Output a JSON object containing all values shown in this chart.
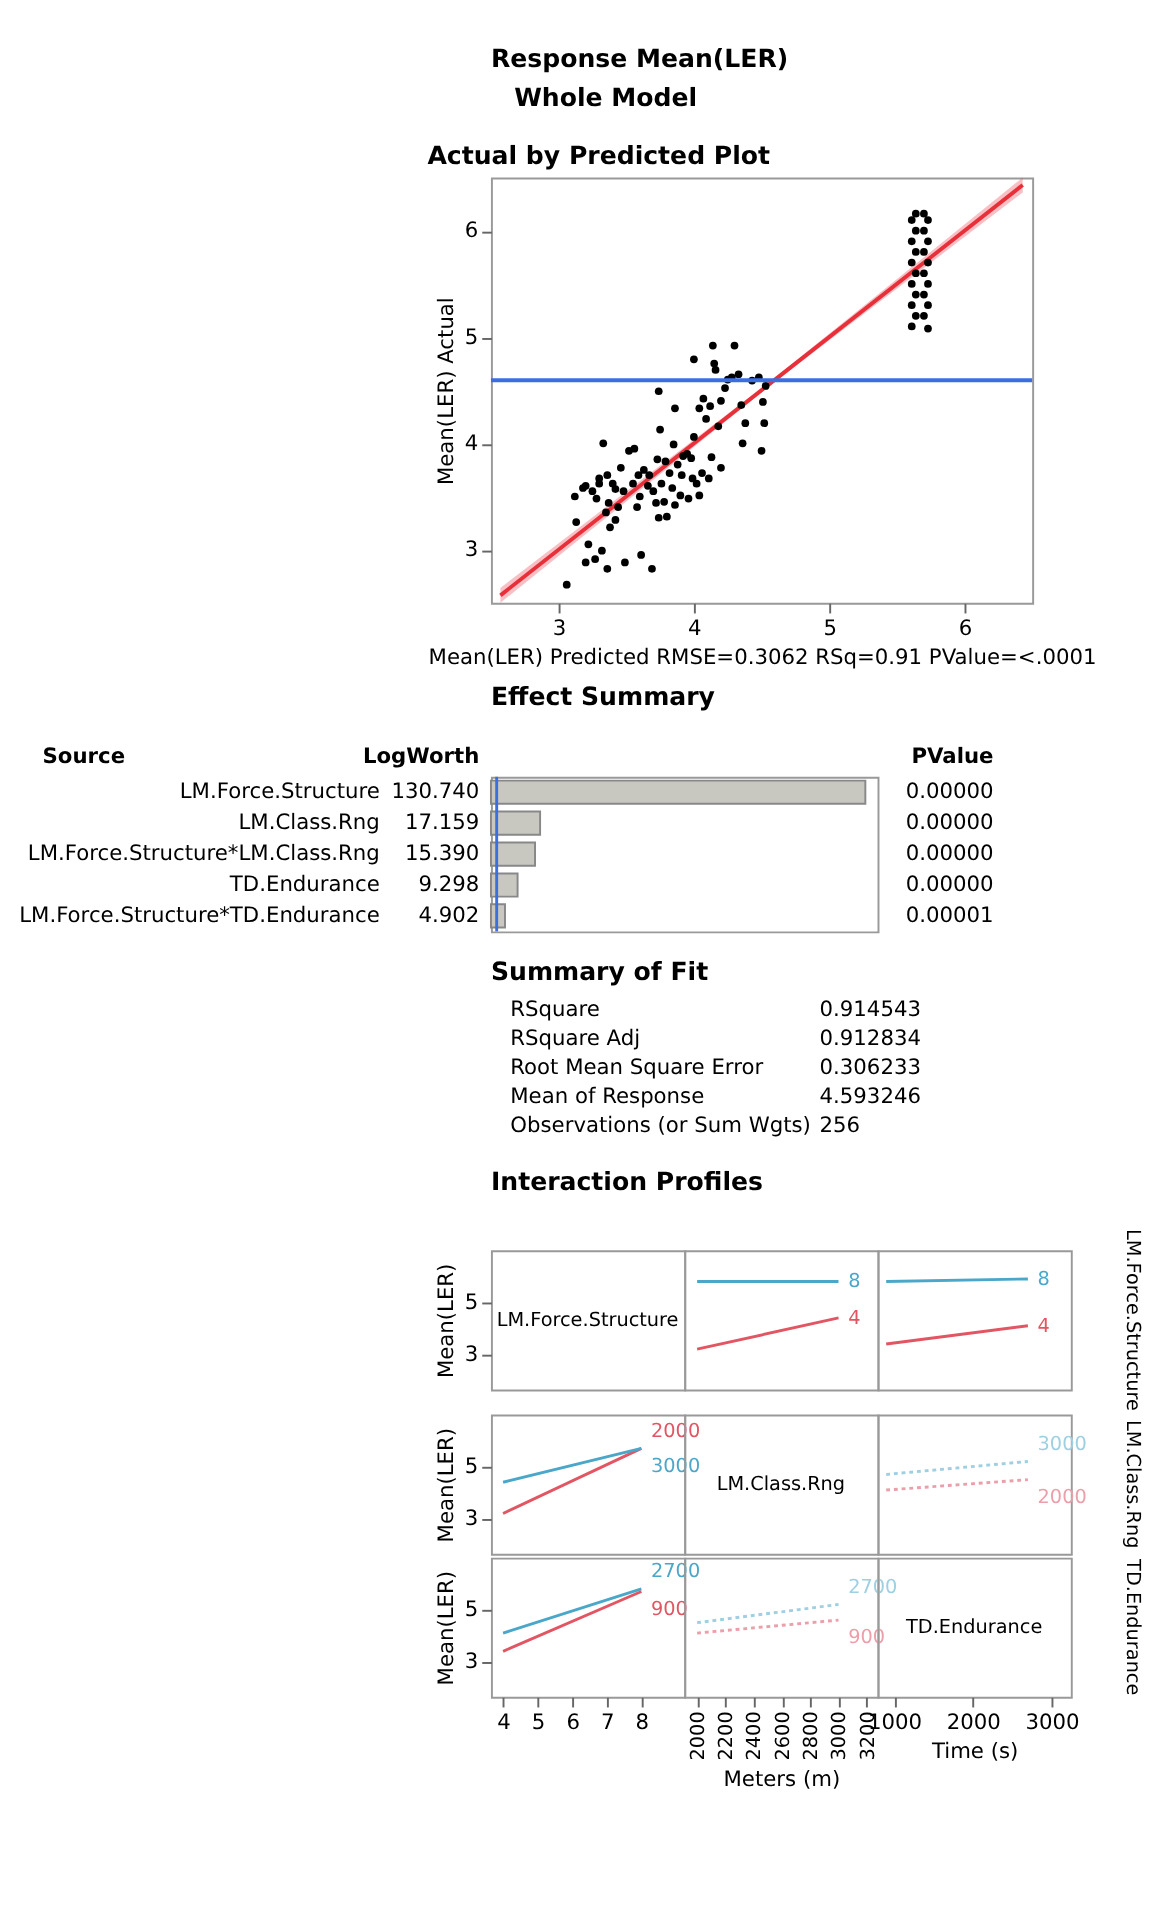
{
  "chart_data": [
    {
      "type": "other",
      "title": "Response Mean(LER)",
      "subtitle": "Whole Model"
    },
    {
      "type": "scatter",
      "title": "Actual by Predicted Plot",
      "xlabel": "Mean(LER) Predicted RMSE=0.3062 RSq=0.91 PValue=<.0001",
      "ylabel": "Mean(LER) Actual",
      "xlim": [
        2.5,
        6.5
      ],
      "ylim": [
        2.5,
        6.5
      ],
      "xticks": [
        3,
        4,
        5,
        6
      ],
      "yticks": [
        3,
        4,
        5,
        6
      ],
      "grid": false,
      "ref_lines": [
        {
          "axis": "y",
          "value": 4.593,
          "color": "#3b6fe0"
        }
      ],
      "series": [
        {
          "type": "line",
          "color": "#e8303a",
          "x": [
            2.57,
            4.59,
            6.43
          ],
          "values": [
            2.57,
            4.59,
            6.43
          ],
          "lower": [
            2.5,
            4.57,
            6.36
          ],
          "upper": [
            2.64,
            4.61,
            6.5
          ]
        },
        {
          "type": "scatter",
          "color": "#000000",
          "x": [
            3.06,
            3.13,
            3.12,
            3.2,
            3.22,
            3.2,
            3.27,
            3.3,
            3.33,
            3.36,
            3.37,
            3.38,
            3.36,
            3.32,
            3.42,
            3.46,
            3.49,
            3.52,
            3.56,
            3.59,
            3.61,
            3.69,
            3.67,
            3.72,
            3.74,
            3.75,
            3.79,
            3.8,
            3.85,
            3.86,
            3.9,
            3.91,
            3.95,
            3.99,
            4.0,
            4.04,
            4.04,
            4.0,
            4.07,
            4.09,
            4.11,
            4.13,
            4.14,
            4.16,
            4.18,
            4.2,
            4.23,
            4.28,
            4.3,
            4.33,
            4.35,
            4.36,
            4.38,
            4.43,
            4.48,
            4.5,
            4.51,
            4.52,
            4.53,
            3.25,
            3.28,
            3.4,
            3.44,
            3.48,
            3.55,
            3.6,
            3.63,
            3.66,
            3.7,
            3.73,
            3.76,
            3.78,
            3.82,
            3.84,
            3.88,
            3.92,
            3.96,
            3.98,
            4.02,
            3.35,
            3.3,
            3.18,
            3.42,
            3.58,
            3.74,
            3.86,
            4.06,
            4.12,
            4.2,
            4.25,
            4.15,
            5.61,
            5.73,
            5.64,
            5.7,
            5.61,
            5.73,
            5.64,
            5.7,
            5.61,
            5.73,
            5.64,
            5.7,
            5.61,
            5.73,
            5.64,
            5.7,
            5.61,
            5.73,
            5.64,
            5.7,
            5.61,
            5.73,
            5.64,
            5.7
          ],
          "values": [
            2.67,
            3.26,
            3.5,
            3.6,
            3.05,
            2.88,
            2.91,
            3.67,
            4.0,
            3.7,
            3.44,
            3.21,
            2.82,
            2.99,
            3.57,
            3.77,
            2.88,
            3.93,
            3.95,
            3.7,
            2.95,
            2.82,
            3.7,
            3.44,
            4.49,
            4.13,
            3.83,
            3.31,
            3.99,
            4.33,
            3.51,
            3.7,
            3.9,
            3.67,
            4.06,
            3.51,
            4.33,
            4.79,
            4.42,
            4.23,
            3.67,
            3.87,
            4.92,
            4.69,
            4.16,
            3.77,
            4.52,
            4.62,
            4.92,
            4.65,
            4.36,
            4.0,
            4.19,
            4.59,
            4.62,
            3.93,
            4.39,
            4.19,
            4.54,
            3.55,
            3.48,
            3.62,
            3.4,
            3.55,
            3.62,
            3.5,
            3.75,
            3.6,
            3.55,
            3.85,
            3.62,
            3.45,
            3.72,
            3.58,
            3.8,
            3.88,
            3.48,
            3.86,
            3.62,
            3.35,
            3.62,
            3.58,
            3.28,
            3.4,
            3.3,
            3.42,
            3.72,
            4.35,
            4.4,
            4.6,
            4.75,
            5.1,
            5.08,
            5.2,
            5.2,
            5.3,
            5.3,
            5.4,
            5.4,
            5.5,
            5.5,
            5.6,
            5.6,
            5.7,
            5.7,
            5.8,
            5.8,
            5.9,
            5.9,
            6.0,
            6.0,
            6.1,
            6.1,
            6.16,
            6.16
          ]
        }
      ]
    },
    {
      "type": "bar",
      "orientation": "horizontal",
      "title": "Effect Summary",
      "categories": [
        "LM.Force.Structure",
        "LM.Class.Rng",
        "LM.Force.Structure*LM.Class.Rng",
        "TD.Endurance",
        "LM.Force.Structure*TD.Endurance"
      ],
      "values": [
        130.74,
        17.159,
        15.39,
        9.298,
        4.902
      ],
      "value_labels": [
        "130.740",
        "17.159",
        "15.390",
        "9.298",
        "4.902"
      ],
      "color": "#c8c8c0",
      "xlim": [
        0,
        135
      ],
      "tick_labels": false,
      "ref_lines": [
        {
          "axis": "x",
          "value": 2,
          "color": "#3b6fe0"
        }
      ],
      "annotations": [
        "Source",
        "LogWorth",
        "PValue",
        "0.00000",
        "0.00000",
        "0.00000",
        "0.00000",
        "0.00001"
      ]
    },
    {
      "type": "other",
      "title": "Summary of Fit",
      "annotations": [
        "RSquare",
        "0.914543",
        "RSquare Adj",
        "0.912834",
        "Root Mean Square Error",
        "0.306233",
        "Mean of Response",
        "4.593246",
        "Observations (or Sum Wgts)",
        "256"
      ]
    },
    {
      "type": "other",
      "title": "Interaction Profiles"
    },
    {
      "type": "line",
      "annotations": [
        "LM.Force.Structure"
      ],
      "xlim": [
        3.65,
        9.24
      ],
      "ylim": [
        1.65,
        7
      ],
      "yticks": [
        3,
        5
      ],
      "ylabel": "Mean(LER)",
      "tick_labels": "y"
    },
    {
      "type": "line",
      "xlim": [
        1909,
        3276
      ],
      "ylim": [
        1.65,
        7
      ],
      "tick_labels": false,
      "series": [
        {
          "name": "8",
          "color": "#4ba7c9",
          "x": [
            2000,
            3000
          ],
          "values": [
            5.8,
            5.8
          ]
        },
        {
          "name": "4",
          "color": "#e25563",
          "x": [
            2000,
            3000
          ],
          "values": [
            3.2,
            4.4
          ]
        }
      ]
    },
    {
      "type": "line",
      "xlim": [
        790,
        3245
      ],
      "ylim": [
        1.65,
        7
      ],
      "tick_labels": false,
      "y2label": "LM.Force.Structure",
      "series": [
        {
          "name": "8",
          "color": "#4ba7c9",
          "x": [
            900,
            2700
          ],
          "values": [
            5.8,
            5.9
          ]
        },
        {
          "name": "4",
          "color": "#e25563",
          "x": [
            900,
            2700
          ],
          "values": [
            3.4,
            4.1
          ]
        }
      ]
    },
    {
      "type": "line",
      "xlim": [
        3.65,
        9.24
      ],
      "ylim": [
        1.65,
        7
      ],
      "yticks": [
        3,
        5
      ],
      "ylabel": "Mean(LER)",
      "tick_labels": "y",
      "series": [
        {
          "name": "2000",
          "color": "#e25563",
          "x": [
            4,
            8
          ],
          "values": [
            3.2,
            5.7
          ]
        },
        {
          "name": "3000",
          "color": "#4ba7c9",
          "x": [
            4,
            8
          ],
          "values": [
            4.4,
            5.7
          ]
        }
      ]
    },
    {
      "type": "line",
      "annotations": [
        "LM.Class.Rng"
      ],
      "xlim": [
        1909,
        3276
      ],
      "ylim": [
        1.65,
        7
      ],
      "tick_labels": false
    },
    {
      "type": "line",
      "xlim": [
        790,
        3245
      ],
      "ylim": [
        1.65,
        7
      ],
      "tick_labels": false,
      "y2label": "LM.Class.Rng",
      "line_style": "dotted",
      "series": [
        {
          "name": "3000",
          "color": "#9fcfe2",
          "x": [
            900,
            2700
          ],
          "values": [
            4.7,
            5.2
          ]
        },
        {
          "name": "2000",
          "color": "#eb9faa",
          "x": [
            900,
            2700
          ],
          "values": [
            4.1,
            4.5
          ]
        }
      ]
    },
    {
      "type": "line",
      "xlim": [
        3.65,
        9.24
      ],
      "xticks": [
        4,
        5,
        6,
        7,
        8
      ],
      "ylim": [
        1.65,
        7
      ],
      "yticks": [
        3,
        5
      ],
      "ylabel": "Mean(LER)",
      "series": [
        {
          "name": "2700",
          "color": "#4ba7c9",
          "x": [
            4,
            8
          ],
          "values": [
            4.1,
            5.8
          ]
        },
        {
          "name": "900",
          "color": "#e25563",
          "x": [
            4,
            8
          ],
          "values": [
            3.4,
            5.7
          ]
        }
      ]
    },
    {
      "type": "line",
      "xlim": [
        1909,
        3276
      ],
      "xticks": [
        2000,
        2200,
        2400,
        2600,
        2800,
        3000,
        3200
      ],
      "ylim": [
        1.65,
        7
      ],
      "tick_labels": "x",
      "xlabel": "Meters (m)",
      "line_style": "dotted",
      "series": [
        {
          "name": "2700",
          "color": "#9fcfe2",
          "x": [
            2000,
            3000
          ],
          "values": [
            4.5,
            5.2
          ]
        },
        {
          "name": "900",
          "color": "#eb9faa",
          "x": [
            2000,
            3000
          ],
          "values": [
            4.1,
            4.6
          ]
        }
      ]
    },
    {
      "type": "line",
      "annotations": [
        "TD.Endurance"
      ],
      "xlim": [
        790,
        3245
      ],
      "xticks": [
        1000,
        2000,
        3000
      ],
      "ylim": [
        1.65,
        7
      ],
      "tick_labels": "x",
      "xlabel": "Time (s)",
      "y2label": "TD.Endurance"
    }
  ]
}
